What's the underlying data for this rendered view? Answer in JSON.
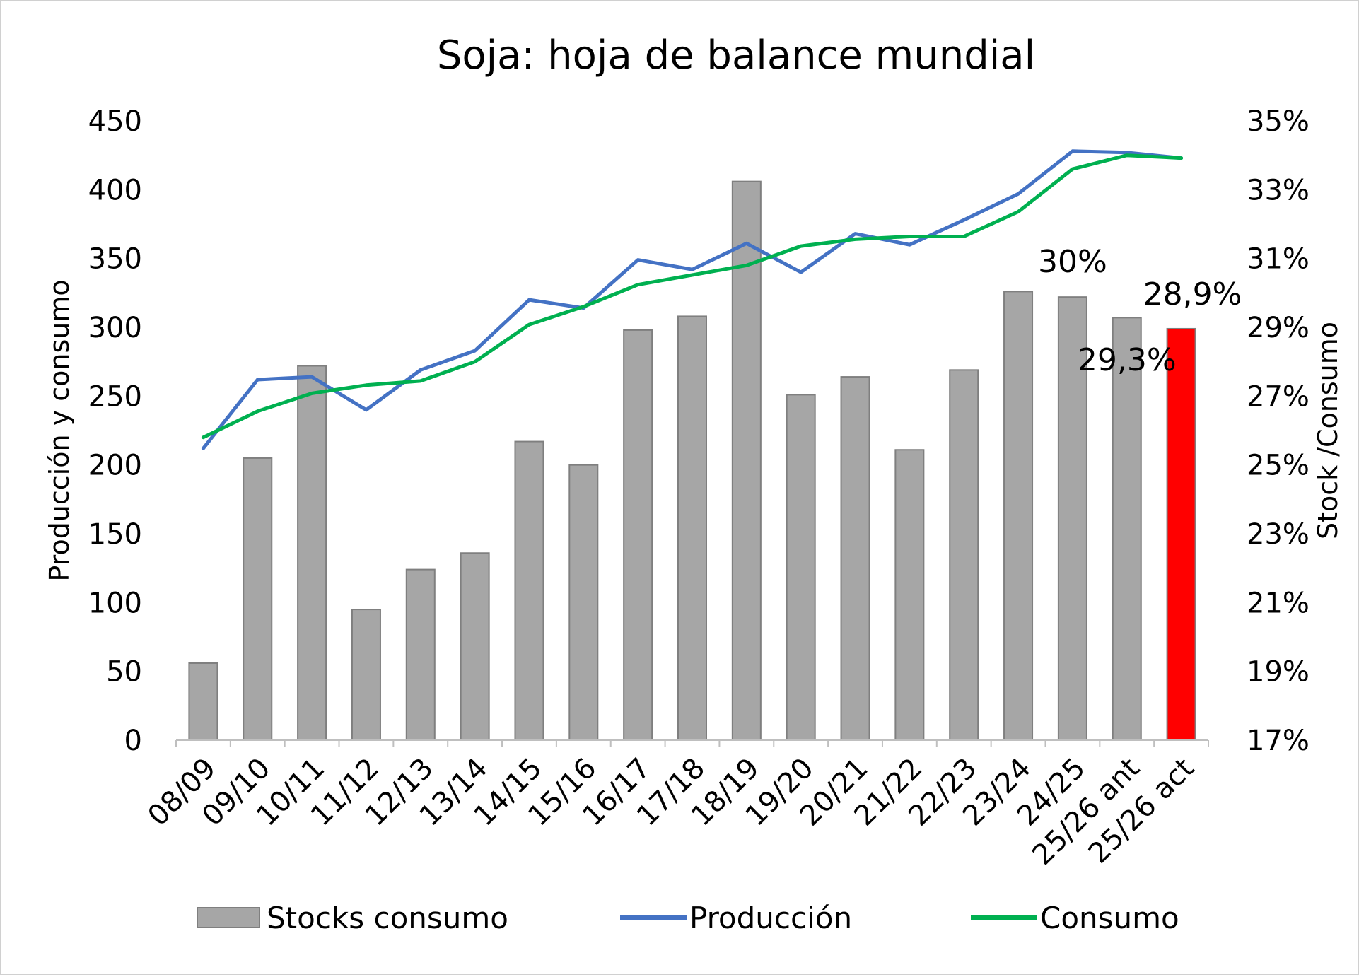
{
  "chart_data": {
    "type": "bar",
    "title": "Soja: hoja de balance mundial",
    "ylabel": "Producción y consumo",
    "y2label": "Stock /Consumo",
    "ylim": [
      0,
      450
    ],
    "y2lim": [
      0.17,
      0.35
    ],
    "yticks": [
      "0",
      "50",
      "100",
      "150",
      "200",
      "250",
      "300",
      "350",
      "400",
      "450"
    ],
    "y2ticks": [
      "17%",
      "19%",
      "21%",
      "23%",
      "25%",
      "27%",
      "29%",
      "31%",
      "33%",
      "35%"
    ],
    "categories": [
      "08/09",
      "09/10",
      "10/11",
      "11/12",
      "12/13",
      "13/14",
      "14/15",
      "15/16",
      "16/17",
      "17/18",
      "18/19",
      "19/20",
      "20/21",
      "21/22",
      "22/23",
      "23/24",
      "24/25",
      "25/26 ant",
      "25/26 act"
    ],
    "series": [
      {
        "name": "Stocks consumo",
        "type": "bar",
        "axis": "y",
        "color": "#a6a6a6",
        "highlight_color": "#ff0000",
        "highlight_index": 18,
        "values": [
          56,
          205,
          272,
          95,
          124,
          136,
          217,
          200,
          298,
          308,
          406,
          251,
          264,
          211,
          269,
          326,
          322,
          307,
          299
        ]
      },
      {
        "name": "Producción",
        "type": "line",
        "axis": "y",
        "color": "#4472c4",
        "values": [
          212,
          262,
          264,
          240,
          269,
          283,
          320,
          314,
          349,
          342,
          361,
          340,
          368,
          360,
          378,
          397,
          428,
          427,
          423
        ]
      },
      {
        "name": "Consumo",
        "type": "line",
        "axis": "y",
        "color": "#00b050",
        "values": [
          220,
          239,
          252,
          258,
          261,
          275,
          302,
          315,
          331,
          338,
          345,
          359,
          364,
          366,
          366,
          384,
          415,
          425,
          423
        ]
      }
    ],
    "annotations": [
      {
        "text": "30%",
        "category": "24/25"
      },
      {
        "text": "29,3%",
        "category": "25/26 ant"
      },
      {
        "text": "28,9%",
        "category": "25/26 act"
      }
    ],
    "legend_position": "bottom",
    "grid": false
  }
}
